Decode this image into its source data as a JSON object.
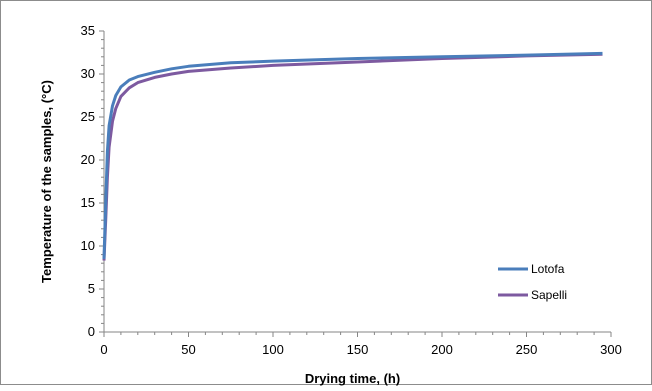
{
  "chart_data": {
    "type": "line",
    "title": "",
    "xlabel": "Drying time, (h)",
    "ylabel": "Temperature of the samples, (°C)",
    "xlim": [
      0,
      300
    ],
    "ylim": [
      0,
      35
    ],
    "xticks": [
      "0",
      "50",
      "100",
      "150",
      "200",
      "250",
      "300"
    ],
    "yticks": [
      "0",
      "5",
      "10",
      "15",
      "20",
      "25",
      "30",
      "35"
    ],
    "grid": false,
    "legend_position": "bottom-right",
    "series": [
      {
        "name": "Lotofa",
        "color": "#4a7ebb",
        "points": [
          [
            0,
            8.5
          ],
          [
            1,
            15
          ],
          [
            2,
            21
          ],
          [
            3,
            24
          ],
          [
            5,
            26.3
          ],
          [
            7,
            27.5
          ],
          [
            10,
            28.5
          ],
          [
            15,
            29.3
          ],
          [
            20,
            29.7
          ],
          [
            30,
            30.2
          ],
          [
            40,
            30.6
          ],
          [
            50,
            30.9
          ],
          [
            75,
            31.3
          ],
          [
            100,
            31.5
          ],
          [
            150,
            31.8
          ],
          [
            200,
            32.0
          ],
          [
            250,
            32.2
          ],
          [
            295,
            32.4
          ]
        ]
      },
      {
        "name": "Sapelli",
        "color": "#7d5aa0",
        "points": [
          [
            0,
            8.3
          ],
          [
            1,
            13
          ],
          [
            2,
            18
          ],
          [
            3,
            21.5
          ],
          [
            5,
            24.5
          ],
          [
            7,
            26
          ],
          [
            10,
            27.4
          ],
          [
            15,
            28.4
          ],
          [
            20,
            29
          ],
          [
            30,
            29.6
          ],
          [
            40,
            30.0
          ],
          [
            50,
            30.3
          ],
          [
            75,
            30.7
          ],
          [
            100,
            31.0
          ],
          [
            150,
            31.4
          ],
          [
            200,
            31.8
          ],
          [
            250,
            32.1
          ],
          [
            295,
            32.3
          ]
        ]
      }
    ]
  }
}
